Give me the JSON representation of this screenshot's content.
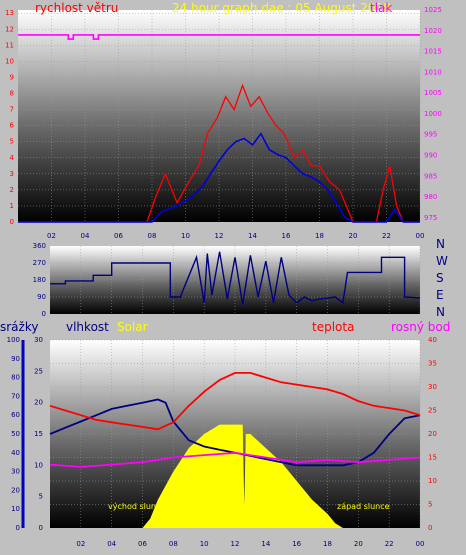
{
  "chart_data": [
    {
      "type": "line",
      "title": "24 hour graph dae : 05 August 2018",
      "left_axis_label": "rychlost větru",
      "right_axis_label": "tlak",
      "x_ticks": [
        "02",
        "04",
        "06",
        "08",
        "10",
        "12",
        "14",
        "16",
        "18",
        "20",
        "22",
        "00"
      ],
      "left_ticks": [
        "0",
        "1",
        "2",
        "3",
        "4",
        "5",
        "6",
        "7",
        "8",
        "9",
        "10",
        "11",
        "12",
        "13"
      ],
      "right_ticks": [
        "975",
        "980",
        "985",
        "990",
        "995",
        "1000",
        "1005",
        "1010",
        "1015",
        "1020",
        "1025"
      ],
      "left_ylim": [
        0,
        13.2
      ],
      "right_ylim": [
        974,
        1025
      ],
      "x_range": [
        0,
        24
      ],
      "series": [
        {
          "name": "tlak",
          "color": "#ff00ff",
          "axis": "right",
          "x": [
            0,
            3.0,
            3.0,
            3.3,
            3.3,
            4.5,
            4.5,
            4.8,
            4.8,
            5.9,
            5.9,
            24
          ],
          "y": [
            1019,
            1019,
            1018,
            1018,
            1019,
            1019,
            1018,
            1018,
            1019,
            1019,
            1019,
            1019
          ]
        },
        {
          "name": "wind_max",
          "color": "#ff0000",
          "axis": "left",
          "x": [
            0,
            7.7,
            8.2,
            8.8,
            9.5,
            10.2,
            10.8,
            11.3,
            11.9,
            12.4,
            12.9,
            13.4,
            13.9,
            14.4,
            14.9,
            15.4,
            15.9,
            16.5,
            17.0,
            17.5,
            18.0,
            18.6,
            19.2,
            19.6,
            20.0,
            21.4,
            21.8,
            22.2,
            22.6,
            23.0,
            24
          ],
          "y": [
            0,
            0,
            1.5,
            3.0,
            1.2,
            2.5,
            3.5,
            5.5,
            6.5,
            7.8,
            7.0,
            8.5,
            7.2,
            7.8,
            6.8,
            6.0,
            5.5,
            4.0,
            4.5,
            3.5,
            3.5,
            2.5,
            2.0,
            1.0,
            0,
            0,
            2.0,
            3.5,
            1.0,
            0,
            0
          ]
        },
        {
          "name": "wind_avg",
          "color": "#0000e0",
          "axis": "left",
          "x": [
            0,
            8.0,
            8.5,
            9.5,
            10.3,
            11.0,
            11.5,
            12.0,
            12.5,
            13.0,
            13.5,
            14.0,
            14.5,
            15.0,
            15.5,
            16.0,
            16.5,
            17.0,
            17.5,
            18.0,
            18.5,
            19.0,
            19.5,
            20.0,
            22.0,
            22.5,
            23.0,
            24
          ],
          "y": [
            0,
            0,
            0.6,
            1.0,
            1.5,
            2.2,
            3.0,
            3.8,
            4.5,
            5.0,
            5.2,
            4.8,
            5.5,
            4.5,
            4.2,
            4.0,
            3.5,
            3.0,
            2.8,
            2.5,
            2.0,
            1.2,
            0.3,
            0,
            0,
            0.8,
            0,
            0
          ]
        }
      ]
    },
    {
      "type": "line",
      "direction_labels": [
        "N",
        "W",
        "S",
        "E",
        "N"
      ],
      "left_ticks": [
        "0",
        "90",
        "180",
        "270",
        "360"
      ],
      "ylim": [
        0,
        360
      ],
      "x_range": [
        0,
        24
      ],
      "series": [
        {
          "name": "wind_direction",
          "color": "#000080",
          "x": [
            0,
            1.0,
            1.0,
            2.8,
            2.8,
            4.0,
            4.0,
            7.8,
            7.8,
            8.5,
            8.5,
            9.5,
            10.0,
            10.2,
            10.5,
            11.0,
            11.5,
            12.0,
            12.5,
            13.0,
            13.5,
            14.0,
            14.5,
            15.0,
            15.5,
            16.0,
            16.5,
            17.0,
            17.5,
            18.5,
            19.0,
            19.3,
            19.3,
            21.5,
            21.5,
            23.0,
            23.0,
            24
          ],
          "y": [
            160,
            160,
            175,
            175,
            205,
            205,
            270,
            270,
            90,
            90,
            100,
            300,
            60,
            320,
            100,
            330,
            80,
            300,
            50,
            310,
            90,
            280,
            60,
            300,
            100,
            60,
            90,
            70,
            80,
            90,
            60,
            220,
            220,
            220,
            300,
            300,
            90,
            85
          ]
        }
      ]
    },
    {
      "type": "line",
      "labels": [
        "srážky",
        "vlhkost",
        "Solar",
        "teplota",
        "rosný bod"
      ],
      "colors": {
        "srazky": "#000080",
        "vlhkost": "#000080",
        "solar": "#ffff00",
        "teplota": "#ff0000",
        "rosny_bod": "#ff00ff"
      },
      "x_ticks": [
        "02",
        "04",
        "06",
        "08",
        "10",
        "12",
        "14",
        "16",
        "18",
        "20",
        "22",
        "00"
      ],
      "srazky_ticks": [
        "0",
        "10",
        "20",
        "30",
        "40",
        "50",
        "60",
        "70",
        "80",
        "90",
        "100"
      ],
      "vlhkost_ticks": [
        "0",
        "5",
        "10",
        "15",
        "20",
        "25",
        "30"
      ],
      "right_ticks": [
        "0",
        "5",
        "10",
        "15",
        "20",
        "25",
        "30",
        "35",
        "40"
      ],
      "ylim_left": [
        0,
        30
      ],
      "ylim_right": [
        0,
        40
      ],
      "x_range": [
        0,
        24
      ],
      "annotations": {
        "sunrise": "východ slunce",
        "sunset": "západ slunce"
      },
      "series": [
        {
          "name": "vlhkost",
          "color": "#000080",
          "axis": "left",
          "x": [
            0,
            1,
            2,
            3,
            4,
            5,
            6,
            7,
            7.5,
            8,
            9,
            10,
            11,
            12,
            13,
            14,
            15,
            16,
            17,
            18,
            19,
            20,
            21,
            22,
            23,
            24
          ],
          "y": [
            15,
            16,
            17,
            18,
            19,
            19.5,
            20,
            20.5,
            20,
            17,
            14,
            13,
            12.5,
            12,
            11.5,
            11,
            10.5,
            10,
            10,
            10,
            10,
            10.5,
            12,
            15,
            17.5,
            18
          ]
        },
        {
          "name": "teplota",
          "color": "#ff0000",
          "axis": "right",
          "x": [
            0,
            1,
            2,
            3,
            4,
            5,
            6,
            7,
            8,
            9,
            10,
            11,
            12,
            13,
            14,
            15,
            16,
            17,
            18,
            19,
            20,
            21,
            22,
            23,
            24
          ],
          "y": [
            26,
            25,
            24,
            23,
            22.5,
            22,
            21.5,
            21,
            22.5,
            26,
            29,
            31.5,
            33,
            33,
            32,
            31,
            30.5,
            30,
            29.5,
            28.5,
            27,
            26,
            25.5,
            25,
            24
          ]
        },
        {
          "name": "rosny_bod",
          "color": "#ff00ff",
          "axis": "right",
          "x": [
            0,
            2,
            4,
            6,
            8,
            10,
            12,
            14,
            16,
            18,
            20,
            22,
            24
          ],
          "y": [
            13.5,
            13,
            13.5,
            14,
            15,
            15.5,
            16,
            15,
            14,
            14.5,
            14,
            14.5,
            15
          ]
        },
        {
          "name": "solar",
          "color": "#ffff00",
          "axis": "right",
          "x": [
            6.0,
            6.5,
            7,
            8,
            9,
            10,
            11,
            12,
            12.5,
            12.6,
            12.7,
            13,
            14,
            15,
            16,
            17,
            18,
            18.5,
            19.0
          ],
          "y": [
            0,
            2,
            6,
            12,
            17,
            20,
            22,
            22,
            22,
            5,
            20,
            20,
            17,
            14,
            10,
            6,
            3,
            1,
            0
          ]
        }
      ]
    }
  ]
}
